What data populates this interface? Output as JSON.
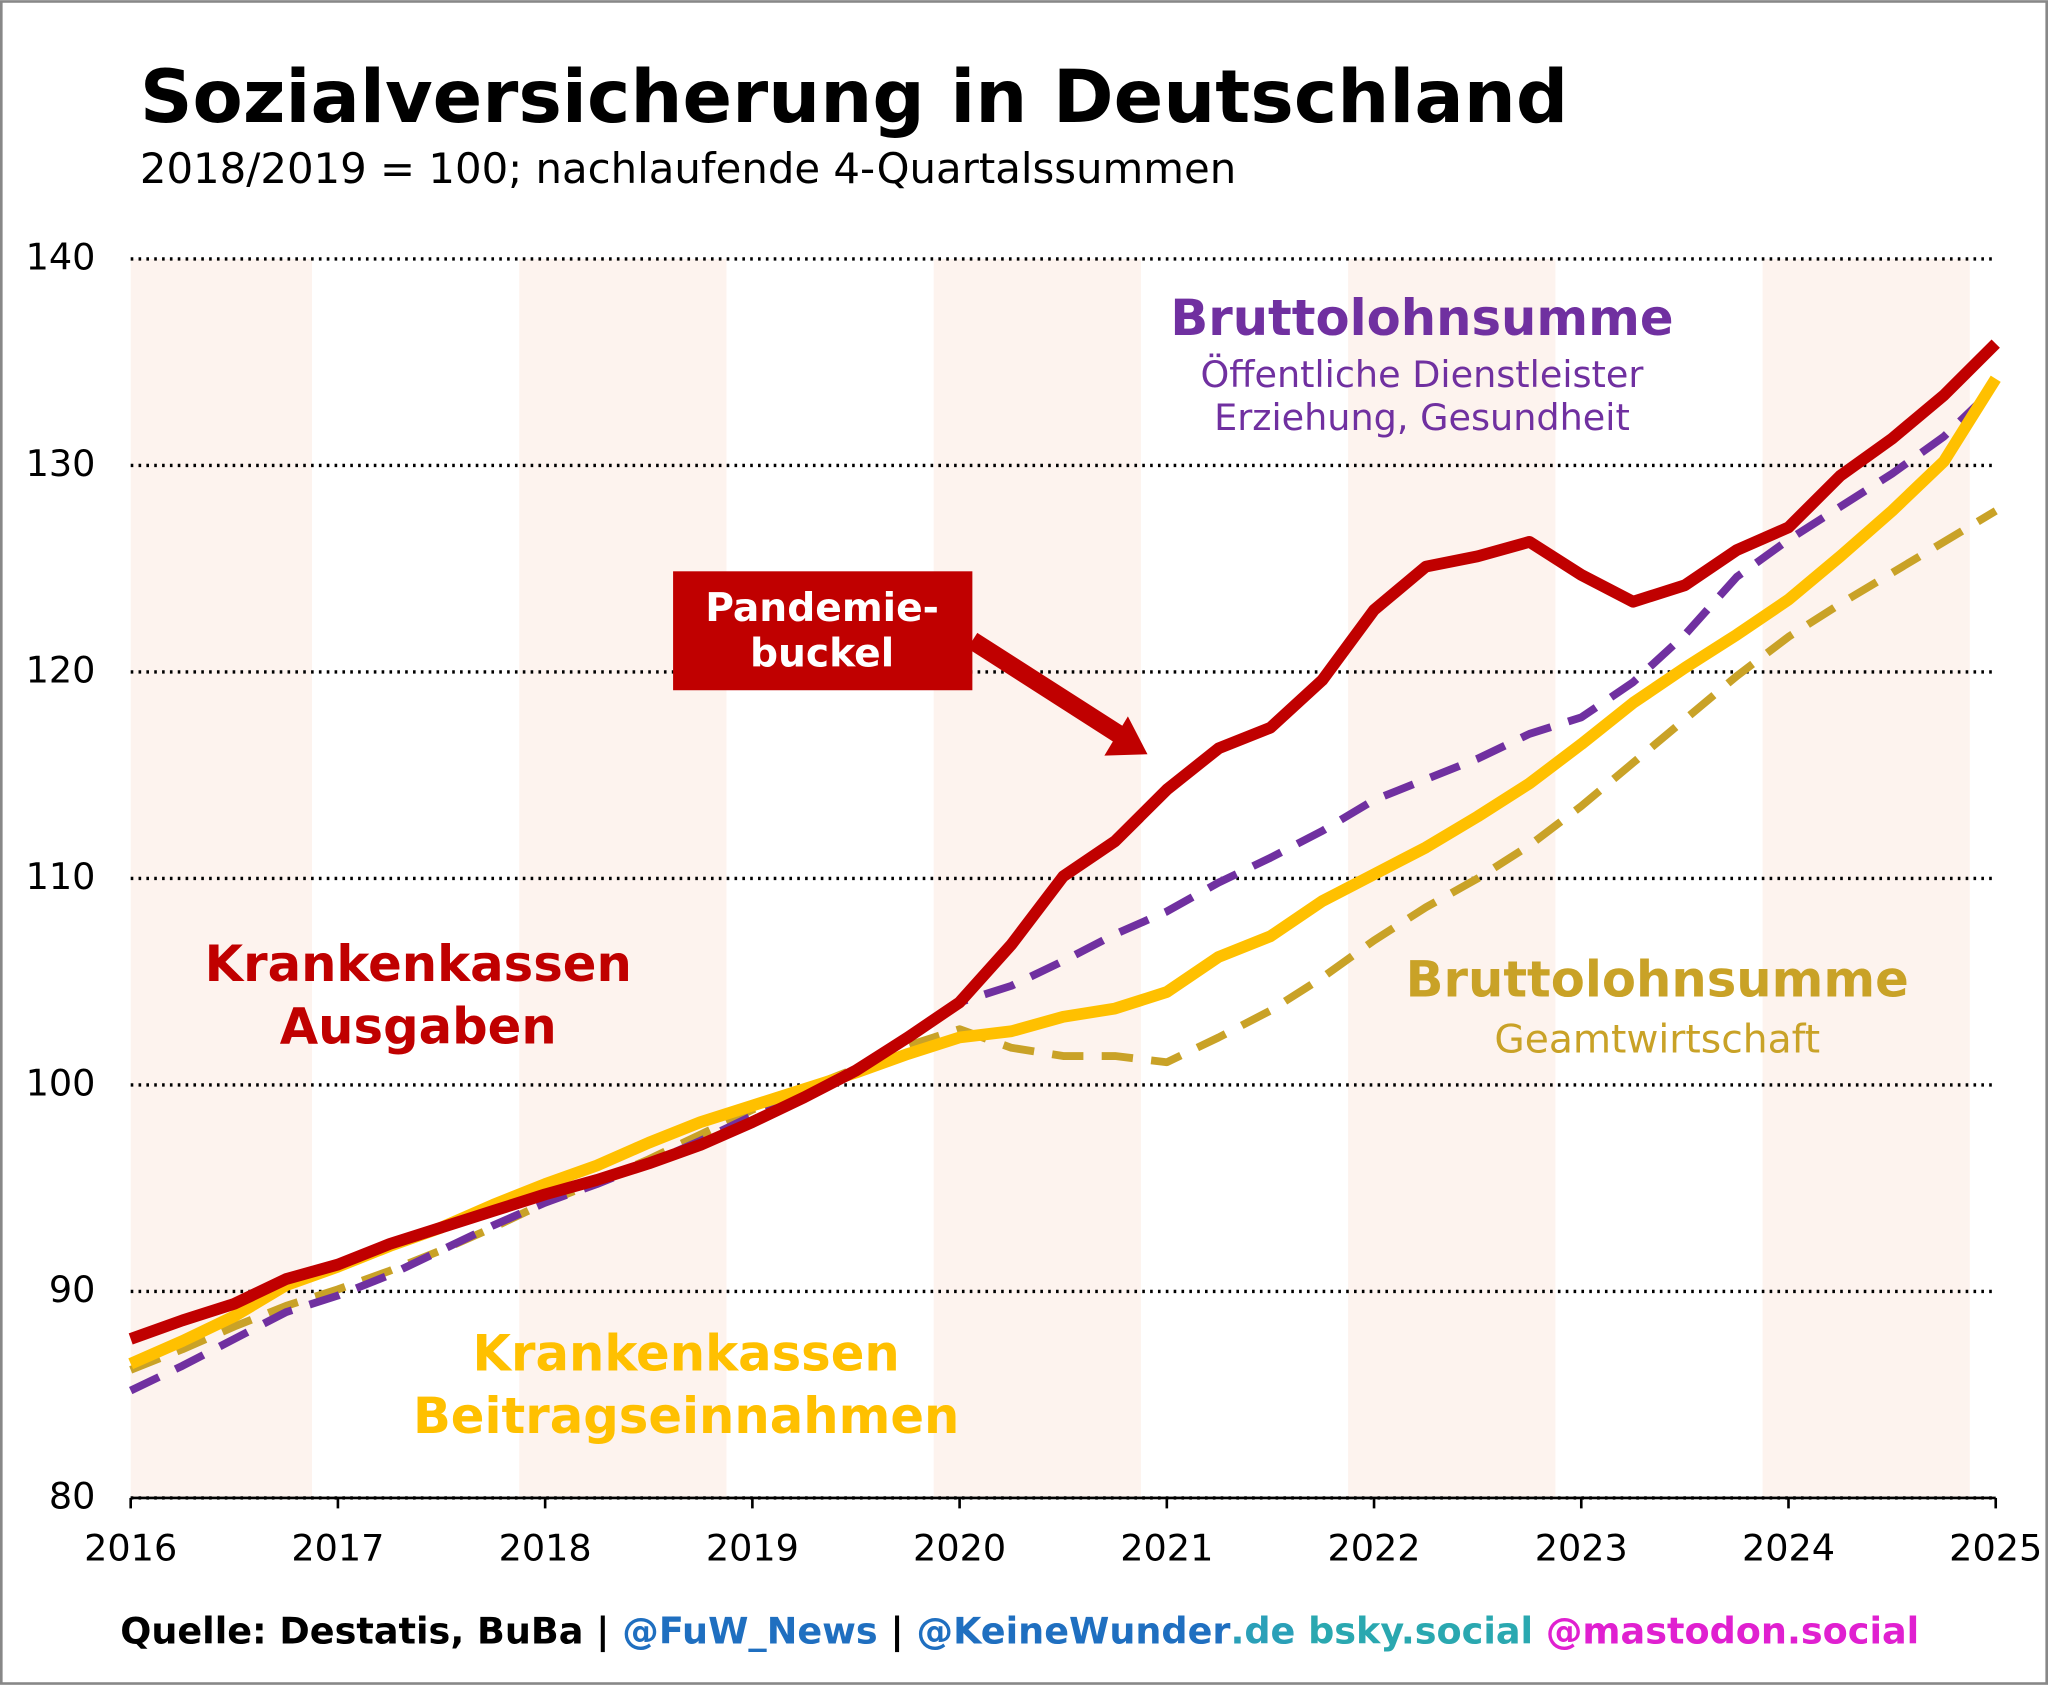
{
  "chart_data": {
    "type": "line",
    "title": "Sozialversicherung in Deutschland",
    "subtitle": "2018/2019 = 100; nachlaufende 4-Quartalssummen",
    "xlim": [
      2016,
      2025
    ],
    "xticks": [
      2016,
      2017,
      2018,
      2019,
      2020,
      2021,
      2022,
      2023,
      2024,
      2025
    ],
    "ylim": [
      80,
      140
    ],
    "yticks": [
      80,
      90,
      100,
      110,
      120,
      130,
      140
    ],
    "grid": true,
    "shaded_periods": [
      [
        2016,
        2016.875
      ],
      [
        2017.875,
        2018.875
      ],
      [
        2019.875,
        2020.875
      ],
      [
        2021.875,
        2022.875
      ],
      [
        2023.875,
        2024.875
      ]
    ],
    "shade_color": "#fdf3ee",
    "x": [
      2016,
      2016.25,
      2016.5,
      2016.75,
      2017,
      2017.25,
      2017.5,
      2017.75,
      2018,
      2018.25,
      2018.5,
      2018.75,
      2019,
      2019.25,
      2019.5,
      2019.75,
      2020,
      2020.25,
      2020.5,
      2020.75,
      2021,
      2021.25,
      2021.5,
      2021.75,
      2022,
      2022.25,
      2022.5,
      2022.75,
      2023,
      2023.25,
      2023.5,
      2023.75,
      2024,
      2024.25,
      2024.5,
      2024.75,
      2025
    ],
    "series": [
      {
        "name": [
          "Bruttolohnsumme",
          "Geamtwirtschaft"
        ],
        "color": "#c9a227",
        "dashed": true,
        "values": [
          86.2,
          87.2,
          88.3,
          89.3,
          90.1,
          91.0,
          92.0,
          93.1,
          94.3,
          95.3,
          96.4,
          97.6,
          98.8,
          99.8,
          100.8,
          101.9,
          102.7,
          101.8,
          101.4,
          101.4,
          101.1,
          102.3,
          103.6,
          105.2,
          107.0,
          108.6,
          110.0,
          111.6,
          113.5,
          115.6,
          117.7,
          119.8,
          121.7,
          123.3,
          124.8,
          126.3,
          127.8
        ]
      },
      {
        "name": [
          "Bruttolohnsumme",
          "Öffentliche Dienstleister",
          "Erziehung, Gesundheit"
        ],
        "color": "#7030a0",
        "dashed": true,
        "values": [
          85.2,
          86.4,
          87.7,
          89.0,
          89.8,
          90.8,
          92.0,
          93.2,
          94.3,
          95.2,
          96.2,
          97.3,
          98.5,
          99.7,
          100.8,
          102.3,
          104.0,
          104.8,
          106.0,
          107.3,
          108.4,
          109.8,
          111.0,
          112.3,
          113.8,
          114.8,
          115.8,
          117.0,
          117.8,
          119.5,
          121.8,
          124.6,
          126.4,
          128.0,
          129.6,
          131.4,
          133.8
        ]
      },
      {
        "name": [
          "Krankenkassen",
          "Beitragseinnahmen"
        ],
        "color": "#ffc000",
        "dashed": false,
        "values": [
          86.5,
          87.6,
          88.8,
          90.3,
          91.2,
          92.2,
          93.1,
          94.2,
          95.2,
          96.1,
          97.2,
          98.2,
          99.0,
          99.8,
          100.6,
          101.5,
          102.3,
          102.6,
          103.3,
          103.7,
          104.5,
          106.2,
          107.2,
          108.9,
          110.2,
          111.5,
          113.0,
          114.6,
          116.5,
          118.5,
          120.2,
          121.8,
          123.5,
          125.6,
          127.8,
          130.2,
          134.2
        ]
      },
      {
        "name": [
          "Krankenkassen",
          "Ausgaben"
        ],
        "color": "#c00000",
        "dashed": false,
        "values": [
          87.7,
          88.6,
          89.4,
          90.6,
          91.3,
          92.3,
          93.1,
          93.9,
          94.7,
          95.4,
          96.2,
          97.1,
          98.2,
          99.4,
          100.7,
          102.3,
          104.0,
          106.8,
          110.1,
          111.8,
          114.3,
          116.3,
          117.3,
          119.6,
          123.0,
          125.1,
          125.6,
          126.3,
          124.7,
          123.4,
          124.2,
          125.9,
          127.0,
          129.5,
          131.3,
          133.4,
          135.9
        ]
      }
    ],
    "annotation": [
      "Pandemie-",
      "buckel"
    ],
    "annotation_color": "#c00000",
    "footer": [
      {
        "text": "Quelle: Destatis, BuBa | ",
        "color": "#000000"
      },
      {
        "text": "@FuW_News",
        "color": "#1f6fc0"
      },
      {
        "text": " | ",
        "color": "#000000"
      },
      {
        "text": "@KeineWunder",
        "color": "#1f6fc0"
      },
      {
        "text": ".de",
        "color": "#2aa0b8"
      },
      {
        "text": " bsky.social",
        "color": "#2aa8b0"
      },
      {
        "text": " @mastodon.social",
        "color": "#e020d0"
      }
    ]
  }
}
